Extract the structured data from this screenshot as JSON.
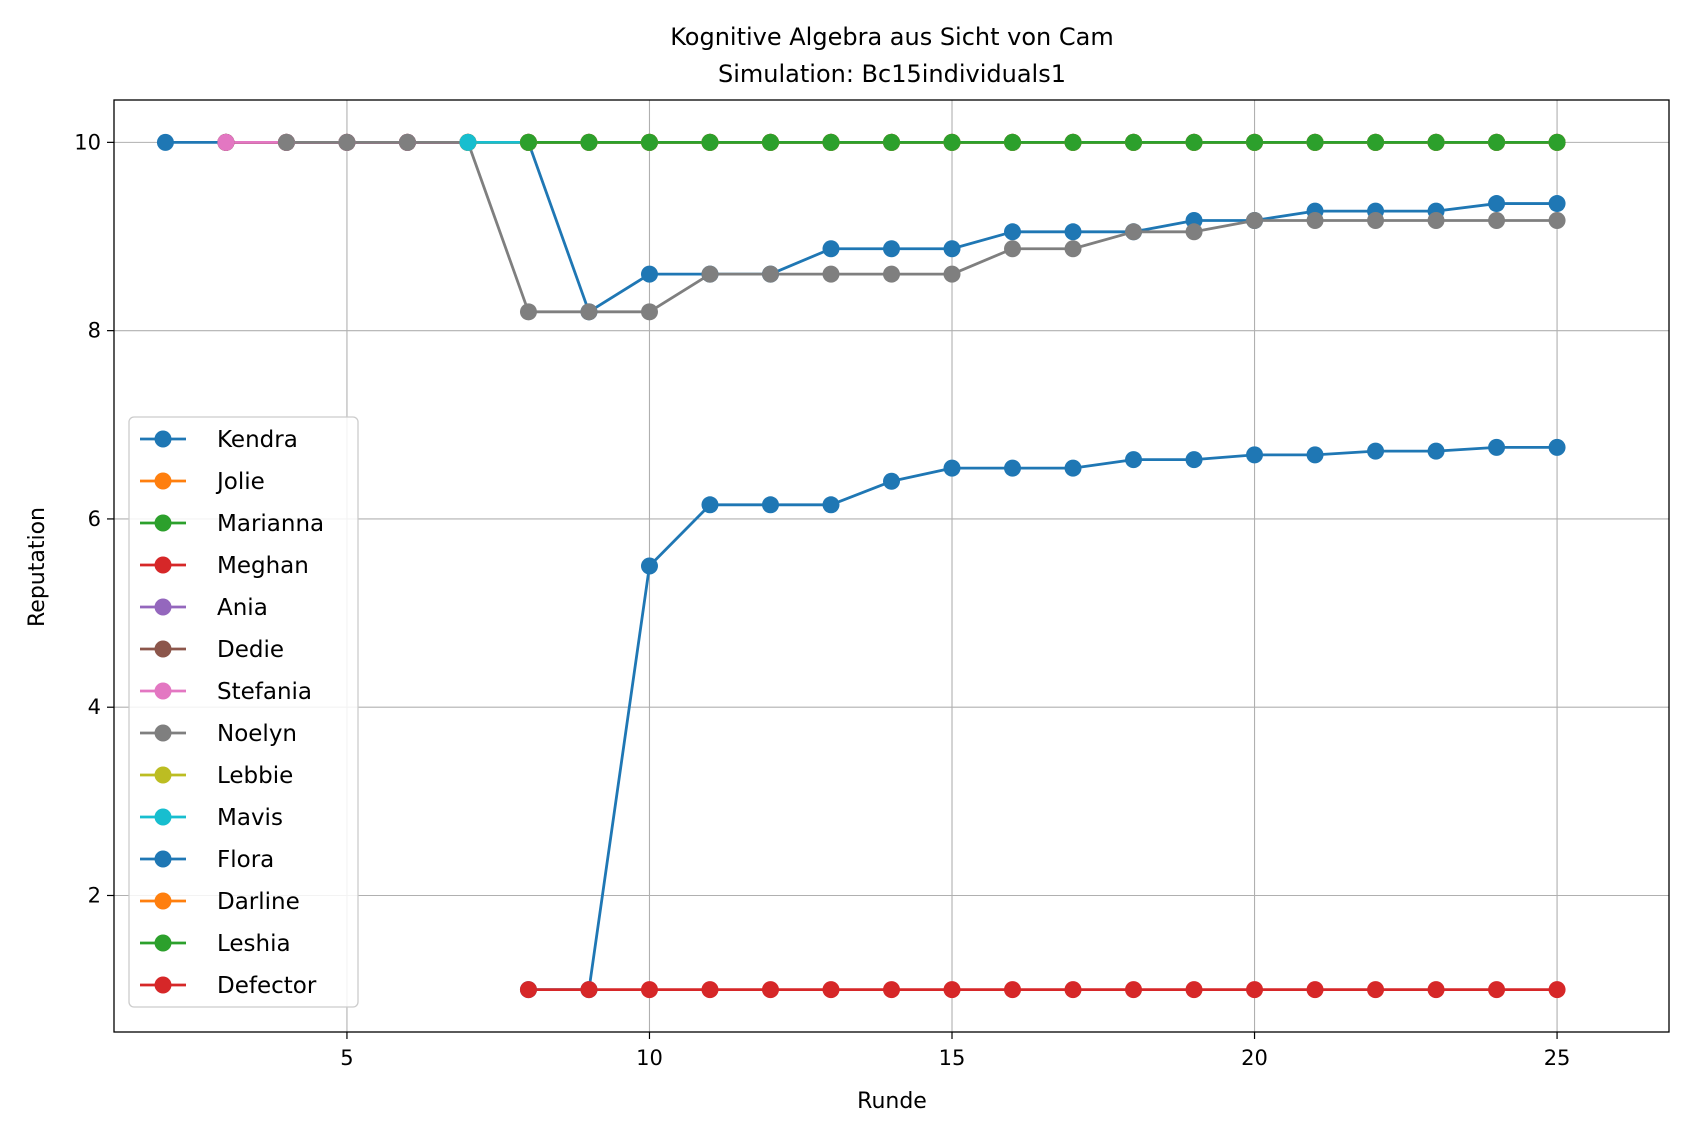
{
  "chart_data": {
    "type": "line",
    "title": "Kognitive Algebra aus Sicht von Cam",
    "subtitle": "Simulation: Bc15individuals1",
    "xlabel": "Runde",
    "ylabel": "Reputation",
    "xlim": [
      1.15,
      26.85
    ],
    "ylim": [
      0.55,
      10.45
    ],
    "xticks": [
      5,
      10,
      15,
      20,
      25
    ],
    "yticks": [
      2,
      4,
      6,
      8,
      10
    ],
    "grid": true,
    "legend_position": "lower-left",
    "series": [
      {
        "name": "Kendra",
        "color": "#1f77b4",
        "x": [
          2,
          3,
          4,
          5,
          6,
          7,
          8,
          9,
          10,
          11,
          12,
          13,
          14,
          15,
          16,
          17,
          18,
          19,
          20,
          21,
          22,
          23,
          24,
          25
        ],
        "y": [
          10,
          10,
          10,
          10,
          10,
          10,
          10,
          8.2,
          8.6,
          8.6,
          8.6,
          8.87,
          8.87,
          8.87,
          9.05,
          9.05,
          9.05,
          9.17,
          9.17,
          9.27,
          9.27,
          9.27,
          9.35,
          9.35
        ]
      },
      {
        "name": "Jolie",
        "color": "#ff7f0e",
        "x": [
          3,
          4,
          5,
          6,
          7,
          8,
          9,
          10,
          11,
          12,
          13,
          14,
          15,
          16,
          17,
          18,
          19,
          20,
          21,
          22,
          23,
          24,
          25
        ],
        "y": [
          10,
          10,
          10,
          10,
          10,
          10,
          10,
          10,
          10,
          10,
          10,
          10,
          10,
          10,
          10,
          10,
          10,
          10,
          10,
          10,
          10,
          10,
          10
        ]
      },
      {
        "name": "Marianna",
        "color": "#2ca02c",
        "x": [
          3,
          4,
          5,
          6,
          7,
          8,
          9,
          10,
          11,
          12,
          13,
          14,
          15,
          16,
          17,
          18,
          19,
          20,
          21,
          22,
          23,
          24,
          25
        ],
        "y": [
          10,
          10,
          10,
          10,
          10,
          10,
          10,
          10,
          10,
          10,
          10,
          10,
          10,
          10,
          10,
          10,
          10,
          10,
          10,
          10,
          10,
          10,
          10
        ]
      },
      {
        "name": "Meghan",
        "color": "#d62728",
        "x": [
          3,
          4,
          5,
          6,
          7,
          8,
          9,
          10,
          11,
          12,
          13,
          14,
          15,
          16,
          17,
          18,
          19,
          20,
          21,
          22,
          23,
          24,
          25
        ],
        "y": [
          10,
          10,
          10,
          10,
          10,
          10,
          10,
          10,
          10,
          10,
          10,
          10,
          10,
          10,
          10,
          10,
          10,
          10,
          10,
          10,
          10,
          10,
          10
        ]
      },
      {
        "name": "Ania",
        "color": "#9467bd",
        "x": [
          3,
          4,
          5,
          6,
          7,
          8,
          9,
          10,
          11,
          12,
          13,
          14,
          15,
          16,
          17,
          18,
          19,
          20,
          21,
          22,
          23,
          24,
          25
        ],
        "y": [
          10,
          10,
          10,
          10,
          10,
          10,
          10,
          10,
          10,
          10,
          10,
          10,
          10,
          10,
          10,
          10,
          10,
          10,
          10,
          10,
          10,
          10,
          10
        ]
      },
      {
        "name": "Dedie",
        "color": "#8c564b",
        "x": [
          3,
          4,
          5,
          6,
          7,
          8,
          9,
          10,
          11,
          12,
          13,
          14,
          15,
          16,
          17,
          18,
          19,
          20,
          21,
          22,
          23,
          24,
          25
        ],
        "y": [
          10,
          10,
          10,
          10,
          10,
          10,
          10,
          10,
          10,
          10,
          10,
          10,
          10,
          10,
          10,
          10,
          10,
          10,
          10,
          10,
          10,
          10,
          10
        ]
      },
      {
        "name": "Stefania",
        "color": "#e377c2",
        "x": [
          3,
          4,
          5,
          6,
          7,
          8,
          9,
          10,
          11,
          12,
          13,
          14,
          15,
          16,
          17,
          18,
          19,
          20,
          21,
          22,
          23,
          24,
          25
        ],
        "y": [
          10,
          10,
          10,
          10,
          10,
          10,
          10,
          10,
          10,
          10,
          10,
          10,
          10,
          10,
          10,
          10,
          10,
          10,
          10,
          10,
          10,
          10,
          10
        ]
      },
      {
        "name": "Noelyn",
        "color": "#7f7f7f",
        "x": [
          4,
          5,
          6,
          7,
          8,
          9,
          10,
          11,
          12,
          13,
          14,
          15,
          16,
          17,
          18,
          19,
          20,
          21,
          22,
          23,
          24,
          25
        ],
        "y": [
          10,
          10,
          10,
          10,
          8.2,
          8.2,
          8.2,
          8.6,
          8.6,
          8.6,
          8.6,
          8.6,
          8.87,
          8.87,
          9.05,
          9.05,
          9.17,
          9.17,
          9.17,
          9.17,
          9.17,
          9.17
        ]
      },
      {
        "name": "Lebbie",
        "color": "#bcbd22",
        "x": [
          7,
          8,
          9,
          10,
          11,
          12,
          13,
          14,
          15,
          16,
          17,
          18,
          19,
          20,
          21,
          22,
          23,
          24,
          25
        ],
        "y": [
          10,
          10,
          10,
          10,
          10,
          10,
          10,
          10,
          10,
          10,
          10,
          10,
          10,
          10,
          10,
          10,
          10,
          10,
          10
        ]
      },
      {
        "name": "Mavis",
        "color": "#17becf",
        "x": [
          7,
          8,
          9,
          10,
          11,
          12,
          13,
          14,
          15,
          16,
          17,
          18,
          19,
          20,
          21,
          22,
          23,
          24,
          25
        ],
        "y": [
          10,
          10,
          10,
          10,
          10,
          10,
          10,
          10,
          10,
          10,
          10,
          10,
          10,
          10,
          10,
          10,
          10,
          10,
          10
        ]
      },
      {
        "name": "Flora",
        "color": "#1f77b4",
        "x": [
          8,
          9,
          10,
          11,
          12,
          13,
          14,
          15,
          16,
          17,
          18,
          19,
          20,
          21,
          22,
          23,
          24,
          25
        ],
        "y": [
          1,
          1,
          5.5,
          6.15,
          6.15,
          6.15,
          6.4,
          6.54,
          6.54,
          6.54,
          6.63,
          6.63,
          6.68,
          6.68,
          6.72,
          6.72,
          6.76,
          6.76
        ]
      },
      {
        "name": "Darline",
        "color": "#ff7f0e",
        "x": [
          8,
          9,
          10,
          11,
          12,
          13,
          14,
          15,
          16,
          17,
          18,
          19,
          20,
          21,
          22,
          23,
          24,
          25
        ],
        "y": [
          10,
          10,
          10,
          10,
          10,
          10,
          10,
          10,
          10,
          10,
          10,
          10,
          10,
          10,
          10,
          10,
          10,
          10
        ]
      },
      {
        "name": "Leshia",
        "color": "#2ca02c",
        "x": [
          8,
          9,
          10,
          11,
          12,
          13,
          14,
          15,
          16,
          17,
          18,
          19,
          20,
          21,
          22,
          23,
          24,
          25
        ],
        "y": [
          10,
          10,
          10,
          10,
          10,
          10,
          10,
          10,
          10,
          10,
          10,
          10,
          10,
          10,
          10,
          10,
          10,
          10
        ]
      },
      {
        "name": "Defector",
        "color": "#d62728",
        "x": [
          8,
          9,
          10,
          11,
          12,
          13,
          14,
          15,
          16,
          17,
          18,
          19,
          20,
          21,
          22,
          23,
          24,
          25
        ],
        "y": [
          1,
          1,
          1,
          1,
          1,
          1,
          1,
          1,
          1,
          1,
          1,
          1,
          1,
          1,
          1,
          1,
          1,
          1
        ]
      }
    ]
  }
}
